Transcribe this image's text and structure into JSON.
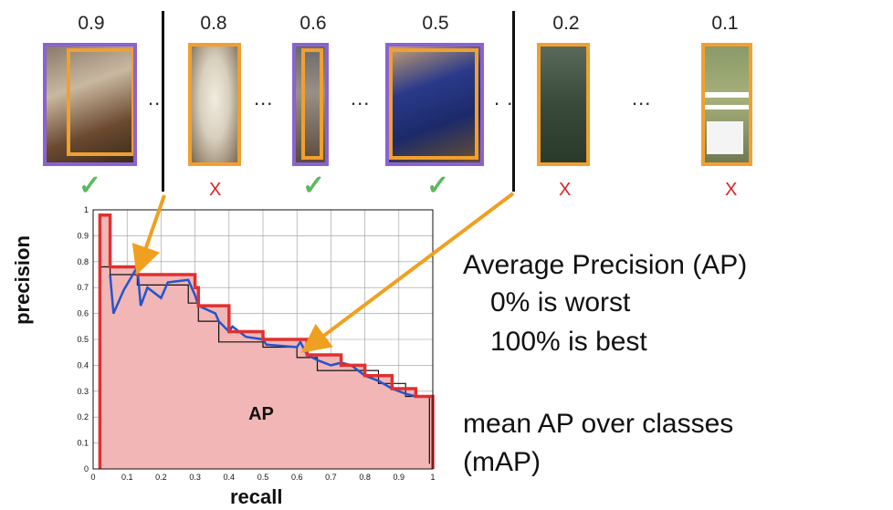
{
  "detections": [
    {
      "score": "0.9",
      "result": "✓",
      "correct": true,
      "icon": "person-horse-photo"
    },
    {
      "score": "0.8",
      "result": "X",
      "correct": false,
      "icon": "sheep-photo"
    },
    {
      "score": "0.6",
      "result": "✓",
      "correct": true,
      "icon": "person-standing-photo"
    },
    {
      "score": "0.5",
      "result": "✓",
      "correct": true,
      "icon": "motorcyclist-photo"
    },
    {
      "score": "0.2",
      "result": "X",
      "correct": false,
      "icon": "tree-photo"
    },
    {
      "score": "0.1",
      "result": "X",
      "correct": false,
      "icon": "field-photo"
    }
  ],
  "ellipsis": "...",
  "text": {
    "ap_title": "Average Precision (AP)",
    "worst": "0%  is worst",
    "best": "100%  is best",
    "map_line1": "mean AP over classes",
    "map_line2": "(mAP)"
  },
  "colors": {
    "box_orange": "#f0a030",
    "box_purple": "#8a63d2",
    "check_green": "#5cb85c",
    "cross_red": "#e02020",
    "area_fill": "#f2b6b6",
    "pr_blue": "#2255cc",
    "pr_red": "#e03030",
    "arrow": "#f0a020"
  },
  "chart_data": {
    "type": "area",
    "xlabel": "recall",
    "ylabel": "precision",
    "area_label": "AP",
    "xlim": [
      0,
      1
    ],
    "ylim": [
      0,
      1
    ],
    "grid": true,
    "x_ticks": [
      "0",
      "0.1",
      "0.2",
      "0.3",
      "0.4",
      "0.5",
      "0.6",
      "0.7",
      "0.8",
      "0.9",
      "1"
    ],
    "y_ticks": [
      "0",
      "0.1",
      "0.2",
      "0.3",
      "0.4",
      "0.5",
      "0.6",
      "0.7",
      "0.8",
      "0.9",
      "1"
    ],
    "series": [
      {
        "role": "interpolated-red",
        "x": [
          0.02,
          0.02,
          0.05,
          0.05,
          0.13,
          0.13,
          0.3,
          0.3,
          0.31,
          0.31,
          0.4,
          0.4,
          0.5,
          0.5,
          0.63,
          0.63,
          0.73,
          0.73,
          0.8,
          0.8,
          0.88,
          0.88,
          0.95,
          0.95,
          1.0,
          1.0
        ],
        "y": [
          0,
          0.98,
          0.98,
          0.78,
          0.78,
          0.75,
          0.75,
          0.7,
          0.7,
          0.63,
          0.63,
          0.53,
          0.53,
          0.5,
          0.5,
          0.44,
          0.44,
          0.4,
          0.4,
          0.36,
          0.36,
          0.31,
          0.31,
          0.28,
          0.28,
          0
        ]
      },
      {
        "role": "raw-blue",
        "x": [
          0.05,
          0.06,
          0.09,
          0.13,
          0.14,
          0.16,
          0.2,
          0.22,
          0.28,
          0.3,
          0.31,
          0.36,
          0.37,
          0.4,
          0.41,
          0.45,
          0.5,
          0.51,
          0.6,
          0.61,
          0.63,
          0.66,
          0.7,
          0.73,
          0.76,
          0.8,
          0.84,
          0.88,
          0.92,
          0.95
        ],
        "y": [
          0.75,
          0.6,
          0.69,
          0.78,
          0.63,
          0.7,
          0.66,
          0.72,
          0.73,
          0.67,
          0.63,
          0.6,
          0.57,
          0.53,
          0.55,
          0.51,
          0.5,
          0.48,
          0.47,
          0.49,
          0.44,
          0.42,
          0.4,
          0.41,
          0.4,
          0.36,
          0.34,
          0.31,
          0.29,
          0.28
        ]
      },
      {
        "role": "step-black",
        "x": [
          0.02,
          0.02,
          0.05,
          0.05,
          0.13,
          0.13,
          0.28,
          0.28,
          0.31,
          0.31,
          0.37,
          0.37,
          0.5,
          0.5,
          0.6,
          0.6,
          0.66,
          0.66,
          0.84,
          0.84,
          0.92,
          0.92,
          0.99,
          0.99
        ],
        "y": [
          0,
          0.78,
          0.78,
          0.75,
          0.75,
          0.71,
          0.71,
          0.64,
          0.64,
          0.57,
          0.57,
          0.49,
          0.49,
          0.47,
          0.47,
          0.43,
          0.43,
          0.38,
          0.38,
          0.33,
          0.33,
          0.28,
          0.28,
          0.02
        ]
      }
    ]
  }
}
